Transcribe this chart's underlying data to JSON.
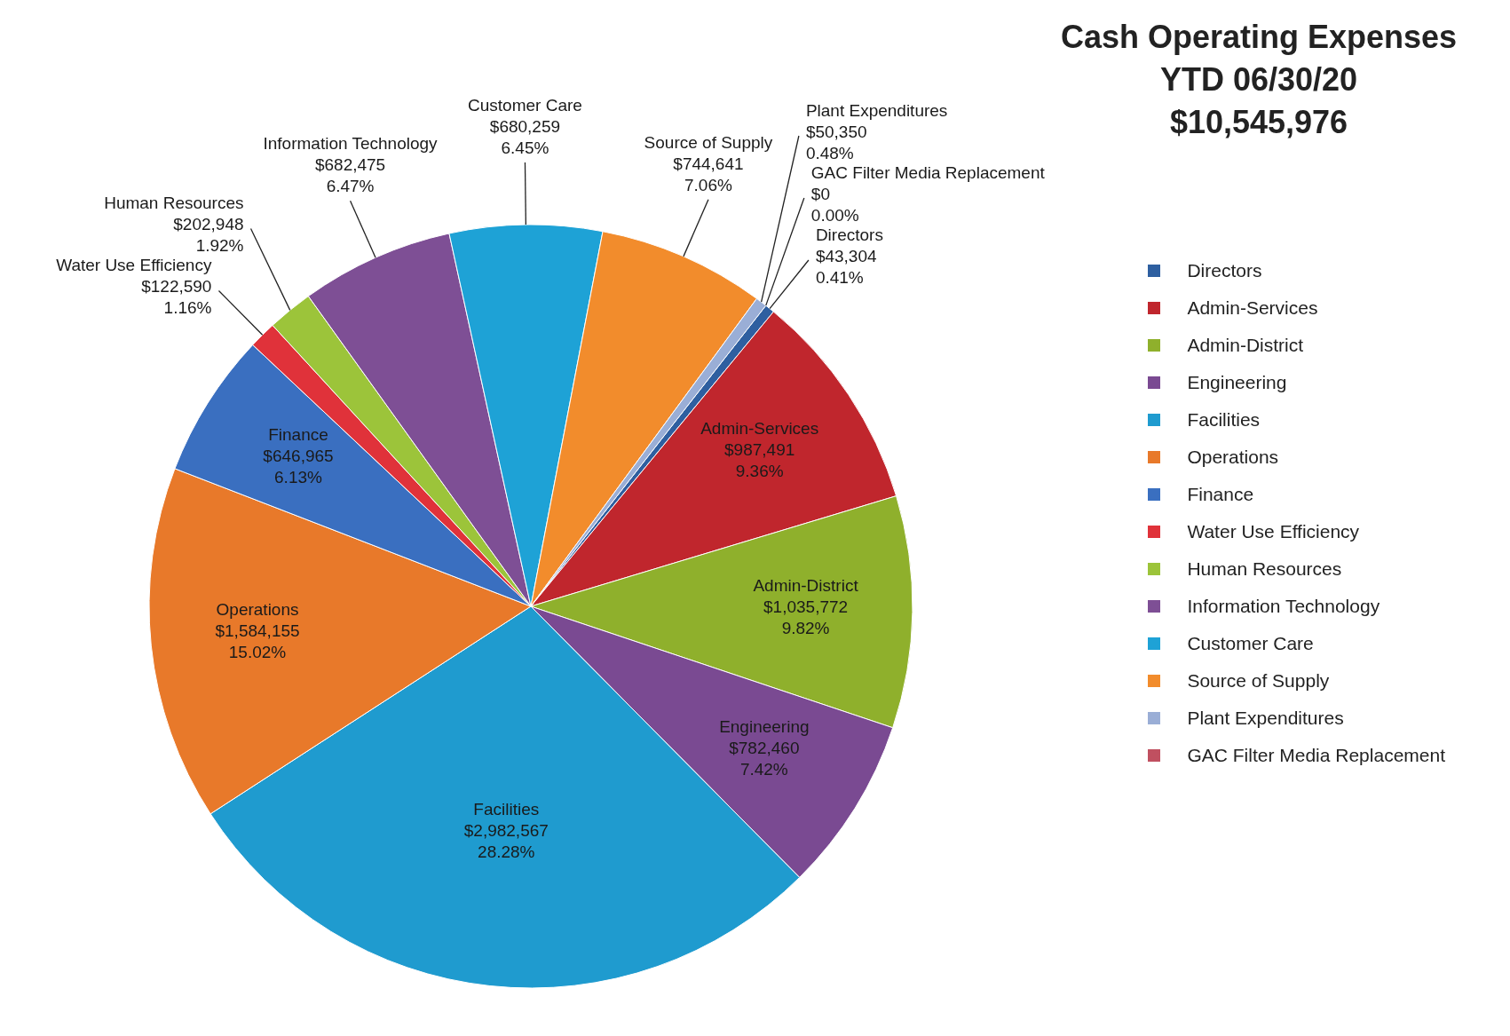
{
  "chart_data": {
    "type": "pie",
    "title": "Cash Operating Expenses",
    "subtitle": "YTD 06/30/20",
    "annotations": [
      "$10,545,976"
    ],
    "categories": [
      "Directors",
      "Admin-Services",
      "Admin-District",
      "Engineering",
      "Facilities",
      "Operations",
      "Finance",
      "Water Use Efficiency",
      "Human Resources",
      "Information Technology",
      "Customer Care",
      "Source of Supply",
      "Plant Expenditures",
      "GAC Filter Media Replacement"
    ],
    "values": [
      43304,
      987491,
      1035772,
      782460,
      2982567,
      1584155,
      646965,
      122590,
      202948,
      682475,
      680259,
      744641,
      50350,
      0
    ],
    "value_labels": [
      "$43,304\n0.41%",
      "$987,491\n9.36%",
      "$1,035,772\n9.82%",
      "$782,460\n7.42%",
      "$2,982,567\n28.28%",
      "$1,584,155\n15.02%",
      "$646,965\n6.13%",
      "$122,590\n1.16%",
      "$202,948\n1.92%",
      "$682,475\n6.47%",
      "$680,259\n6.45%",
      "$744,641\n7.06%",
      "$50,350\n0.48%",
      "$0\n0.00%"
    ],
    "colors": [
      "#2e5fa0",
      "#c0262d",
      "#8fb02c",
      "#7a4a92",
      "#1f9bcf",
      "#e8792a",
      "#3a6fc0",
      "#e0323a",
      "#9cc43a",
      "#7e4f95",
      "#1ea2d6",
      "#f28c2c",
      "#9aaed6",
      "#c05060"
    ],
    "legend": "right"
  }
}
